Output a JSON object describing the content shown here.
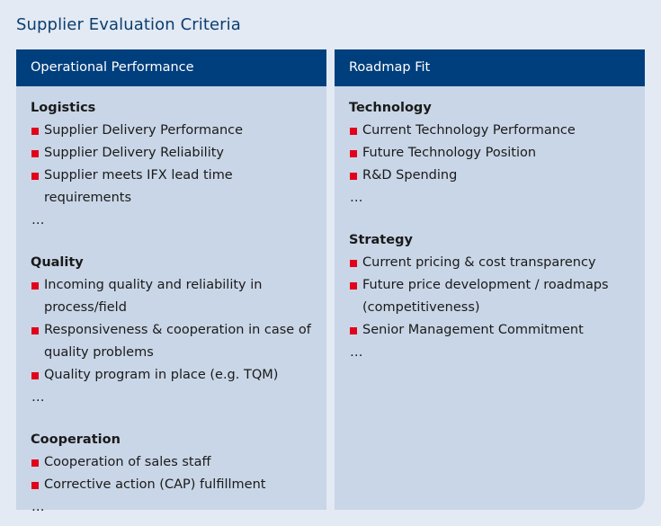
{
  "title": "Supplier Evaluation Criteria",
  "colors": {
    "header_bg": "#003f7d",
    "panel_bg": "#c9d6e7",
    "page_bg": "#e3eaf4",
    "bullet": "#e2001a",
    "title": "#0c3e6e"
  },
  "left": {
    "header": "Operational Performance",
    "sections": [
      {
        "title": "Logistics",
        "items": [
          "Supplier Delivery Performance",
          "Supplier Delivery Reliability",
          "Supplier meets IFX lead time requirements"
        ],
        "more": "…"
      },
      {
        "title": "Quality",
        "items": [
          "Incoming quality and reliability in process/field",
          "Responsiveness & cooperation in case of quality problems",
          "Quality program in place (e.g. TQM)"
        ],
        "more": "…"
      },
      {
        "title": "Cooperation",
        "items": [
          "Cooperation of sales staff",
          "Corrective action (CAP) fulfillment"
        ],
        "more": "…"
      }
    ]
  },
  "right": {
    "header": "Roadmap Fit",
    "sections": [
      {
        "title": "Technology",
        "items": [
          "Current Technology Performance",
          "Future Technology Position",
          "R&D Spending"
        ],
        "more": "…"
      },
      {
        "title": "Strategy",
        "items": [
          "Current pricing & cost transparency",
          "Future price development / roadmaps (competitiveness)",
          "Senior Management Commitment"
        ],
        "more": "…"
      }
    ]
  }
}
